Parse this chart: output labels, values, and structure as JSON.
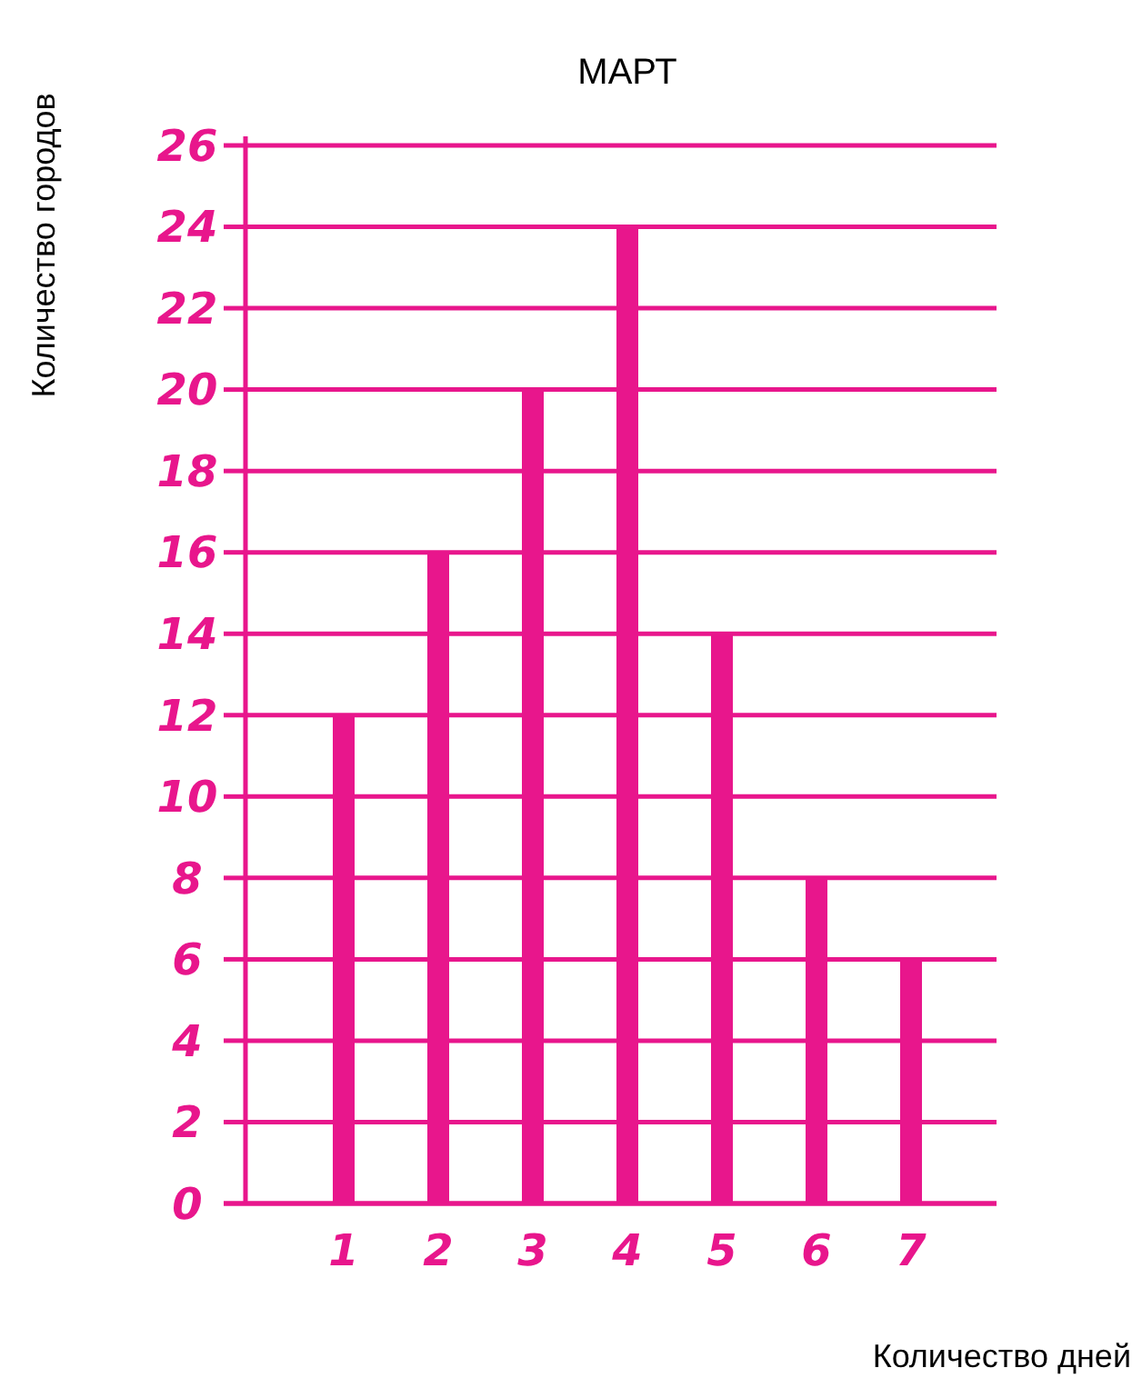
{
  "chart_data": {
    "type": "bar",
    "title": "МАРТ",
    "xlabel": "Количество дней",
    "ylabel": "Количество городов",
    "categories": [
      "1",
      "2",
      "3",
      "4",
      "5",
      "6",
      "7"
    ],
    "values": [
      12,
      16,
      20,
      24,
      14,
      8,
      6
    ],
    "color": "#e8168c",
    "ylim": [
      0,
      26
    ],
    "yticks": [
      0,
      2,
      4,
      6,
      8,
      10,
      12,
      14,
      16,
      18,
      20,
      22,
      24,
      26
    ],
    "grid": "y"
  }
}
